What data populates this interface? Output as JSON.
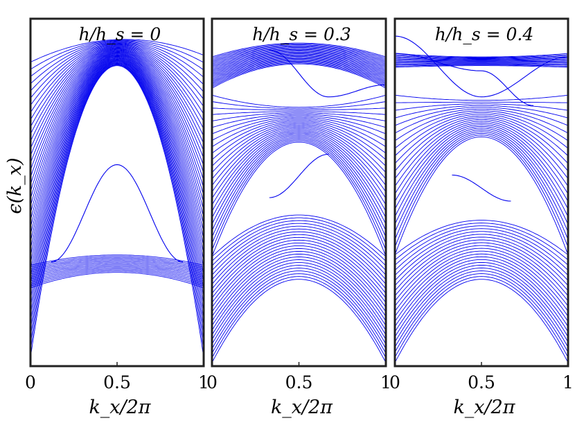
{
  "chart_data": [
    {
      "type": "line",
      "title": "h/h_s = 0",
      "xlabel": "k_x/2π",
      "ylabel": "ϵ(k_x)",
      "xlim": [
        0,
        1
      ],
      "ylim": [
        -1,
        1
      ],
      "xticks": [
        "0",
        "0.5",
        "1"
      ],
      "series_color": "#0000ee",
      "bands": [
        {
          "name": "upper bulk band",
          "top": [
            0.75,
            0.88,
            0.79
          ],
          "bottom": [
            -0.95,
            0.73,
            -0.95
          ],
          "count": 42
        },
        {
          "name": "lower bulk band",
          "top": [
            -0.42,
            -0.36,
            -0.42
          ],
          "bottom": [
            -0.55,
            -0.46,
            -0.55
          ],
          "count": 14
        }
      ],
      "edge_states": [
        {
          "x": [
            0.12,
            0.5,
            0.88
          ],
          "y": [
            -0.4,
            0.16,
            -0.4
          ]
        }
      ]
    },
    {
      "type": "line",
      "title": "h/h_s = 0.3",
      "xlabel": "k_x/2π",
      "xlim": [
        0,
        1
      ],
      "ylim": [
        -1,
        1
      ],
      "xticks": [
        "0",
        "0.5",
        "1"
      ],
      "series_color": "#0000ee",
      "bands": [
        {
          "name": "upper bulk band",
          "top": [
            0.78,
            0.86,
            0.78
          ],
          "bottom": [
            0.6,
            0.74,
            0.6
          ],
          "count": 24
        },
        {
          "name": "middle bulk band",
          "top": [
            0.56,
            0.49,
            0.56
          ],
          "bottom": [
            -0.37,
            0.29,
            -0.37
          ],
          "count": 26
        },
        {
          "name": "lower bulk band",
          "top": [
            -0.37,
            -0.13,
            -0.37
          ],
          "bottom": [
            -0.98,
            -0.5,
            -0.98
          ],
          "count": 24
        }
      ],
      "edge_states": [
        {
          "x": [
            0.33,
            0.67,
            1.0
          ],
          "y": [
            0.82,
            0.55,
            0.62
          ]
        },
        {
          "x": [
            0.33,
            0.67
          ],
          "y": [
            -0.03,
            0.22
          ]
        }
      ]
    },
    {
      "type": "line",
      "title": "h/h_s = 0.4",
      "xlabel": "k_x/2π",
      "xlim": [
        0,
        1
      ],
      "ylim": [
        -1,
        1
      ],
      "xticks": [
        "0",
        "0.5",
        "1"
      ],
      "series_color": "#0000ee",
      "bands": [
        {
          "name": "upper bulk band",
          "top": [
            0.8,
            0.78,
            0.8
          ],
          "bottom": [
            0.72,
            0.73,
            0.72
          ],
          "count": 14
        },
        {
          "name": "middle bulk band",
          "top": [
            0.56,
            0.53,
            0.56
          ],
          "bottom": [
            -0.36,
            0.32,
            -0.36
          ],
          "count": 22
        },
        {
          "name": "lower bulk band",
          "top": [
            -0.36,
            -0.16,
            -0.36
          ],
          "bottom": [
            -0.98,
            -0.5,
            -0.98
          ],
          "count": 22
        }
      ],
      "edge_states": [
        {
          "x": [
            0.0,
            0.5,
            0.8
          ],
          "y": [
            0.8,
            0.7,
            0.5
          ]
        },
        {
          "x": [
            0.0,
            0.5,
            1.0
          ],
          "y": [
            0.9,
            0.55,
            0.78
          ]
        },
        {
          "x": [
            0.33,
            0.67
          ],
          "y": [
            0.1,
            -0.05
          ]
        }
      ]
    }
  ]
}
